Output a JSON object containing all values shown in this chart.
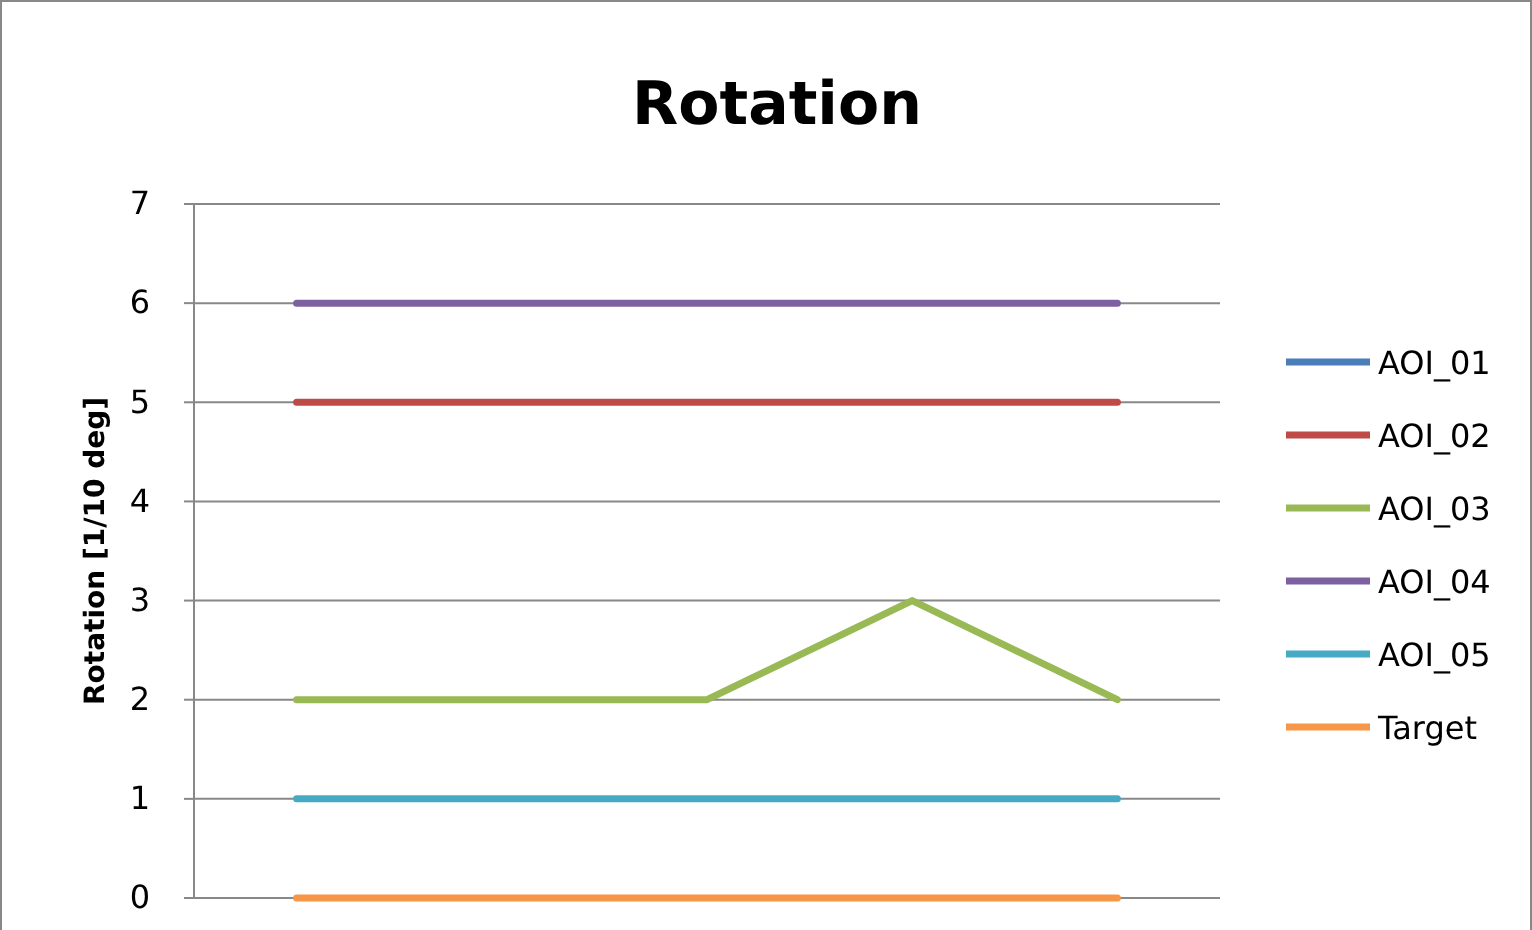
{
  "chart_data": {
    "type": "line",
    "title": "Rotation",
    "ylabel": "Rotation [1/10 deg]",
    "categories": [
      null,
      null,
      null,
      null,
      null
    ],
    "series": [
      {
        "name": "AOI_01",
        "color": "#4a7ebb",
        "values": [
          null,
          null,
          null,
          null,
          null
        ]
      },
      {
        "name": "AOI_02",
        "color": "#be4b48",
        "values": [
          5,
          5,
          5,
          5,
          5
        ]
      },
      {
        "name": "AOI_03",
        "color": "#98b954",
        "values": [
          2,
          2,
          2,
          3,
          2
        ]
      },
      {
        "name": "AOI_04",
        "color": "#7d60a0",
        "values": [
          6,
          6,
          6,
          6,
          6
        ]
      },
      {
        "name": "AOI_05",
        "color": "#46aac5",
        "values": [
          1,
          1,
          1,
          1,
          1
        ]
      },
      {
        "name": "Target",
        "color": "#f79646",
        "values": [
          0,
          0,
          0,
          0,
          0
        ]
      }
    ],
    "ylim": [
      0,
      7
    ],
    "yticks": [
      0,
      1,
      2,
      3,
      4,
      5,
      6,
      7
    ],
    "grid": "y",
    "legend": "right",
    "marker": "none",
    "line_style": "solid"
  }
}
